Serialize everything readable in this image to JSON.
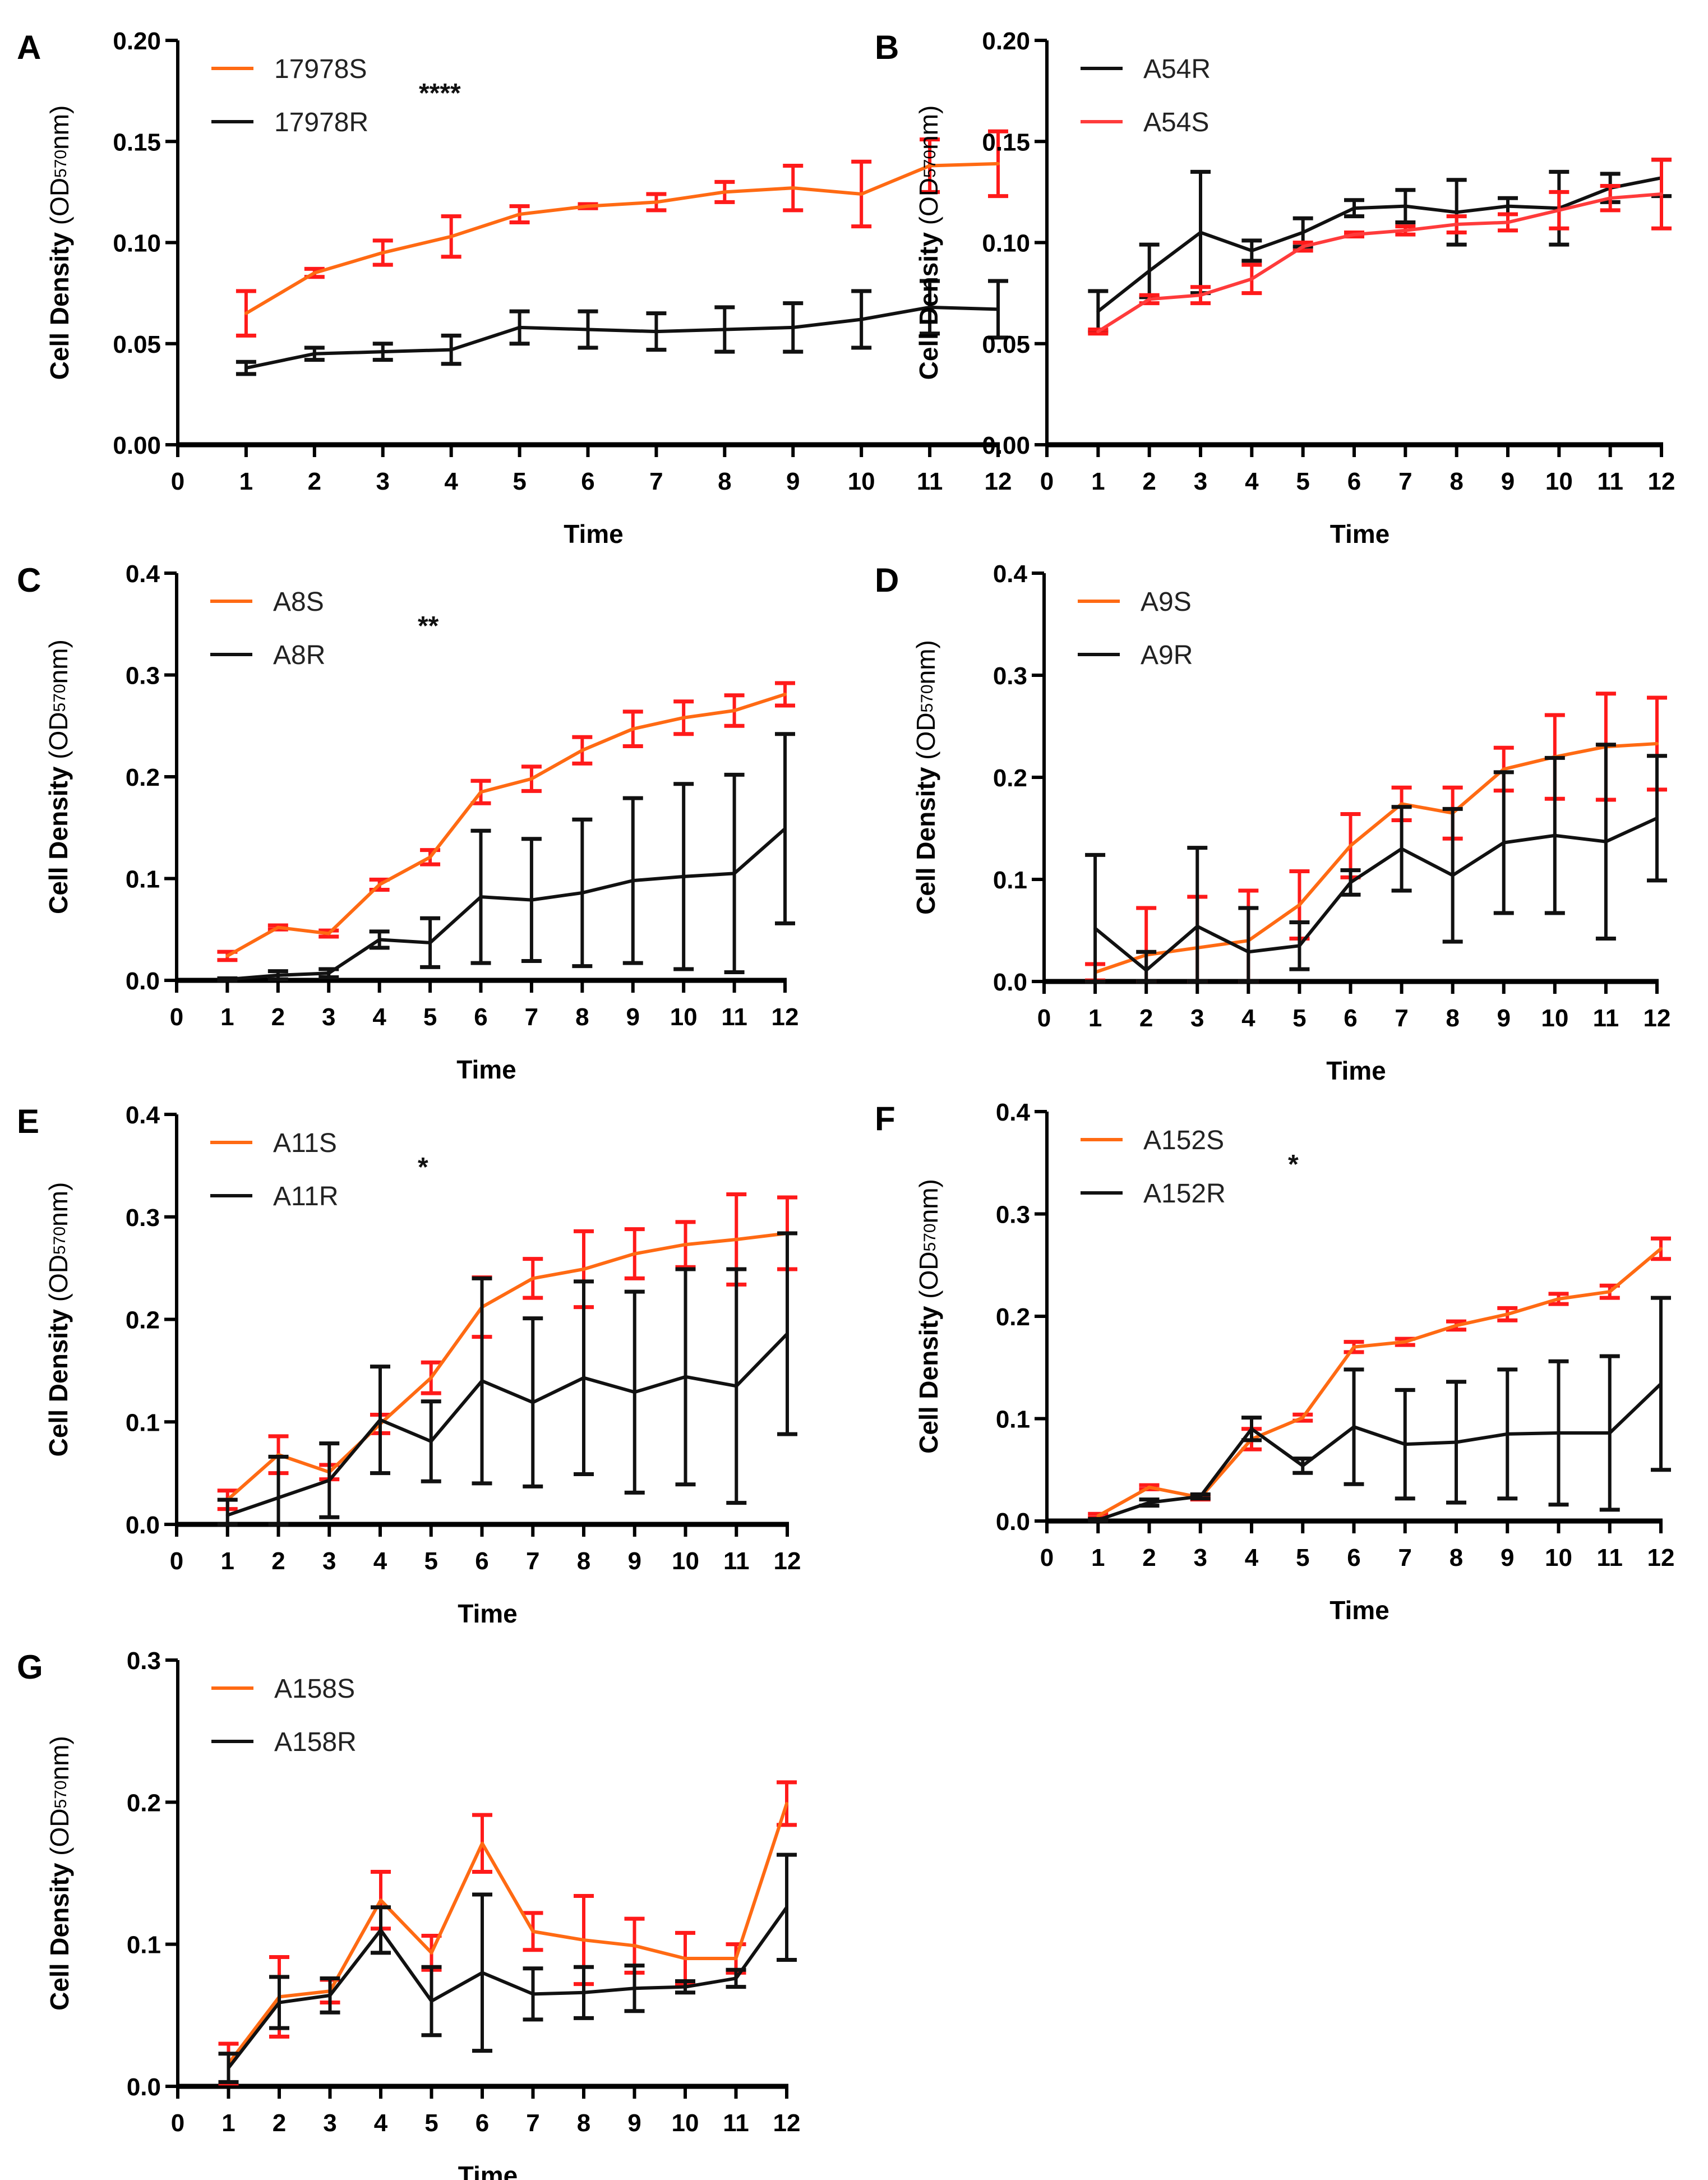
{
  "figure": {
    "y_axis_title_main": "Cell Density",
    "y_axis_unit_prefix": "(OD",
    "y_axis_unit_sub": "570",
    "y_axis_unit_suffix": "nm)",
    "x_axis_title": "Time"
  },
  "chart_data": [
    {
      "panel": "A",
      "type": "line",
      "title": "",
      "xlabel": "Time",
      "ylabel": "Cell Density (OD570nm)",
      "x": [
        1,
        2,
        3,
        4,
        5,
        6,
        7,
        8,
        9,
        10,
        11,
        12
      ],
      "xlim": [
        0,
        12
      ],
      "xticks": [
        "0",
        "1",
        "2",
        "3",
        "4",
        "5",
        "6",
        "7",
        "8",
        "9",
        "10",
        "11",
        "12"
      ],
      "ylim": [
        0,
        0.2
      ],
      "yticks": [
        "0.00",
        "0.05",
        "0.10",
        "0.15",
        "0.20"
      ],
      "ytick_values": [
        0,
        0.05,
        0.1,
        0.15,
        0.2
      ],
      "significance": "****",
      "legend_order": [
        0,
        1
      ],
      "series": [
        {
          "name": "17978S",
          "color": "#ff6a13",
          "error_color": "#ff1a1a",
          "values": [
            0.065,
            0.085,
            0.095,
            0.103,
            0.114,
            0.118,
            0.12,
            0.125,
            0.127,
            0.124,
            0.138,
            0.139
          ],
          "errors": [
            0.011,
            0.002,
            0.006,
            0.01,
            0.004,
            0.001,
            0.004,
            0.005,
            0.011,
            0.016,
            0.013,
            0.016
          ]
        },
        {
          "name": "17978R",
          "color": "#111111",
          "error_color": "#111111",
          "values": [
            0.038,
            0.045,
            0.046,
            0.047,
            0.058,
            0.057,
            0.056,
            0.057,
            0.058,
            0.062,
            0.068,
            0.067
          ],
          "errors": [
            0.003,
            0.003,
            0.004,
            0.007,
            0.008,
            0.009,
            0.009,
            0.011,
            0.012,
            0.014,
            0.013,
            0.014
          ]
        }
      ]
    },
    {
      "panel": "B",
      "type": "line",
      "title": "",
      "xlabel": "Time",
      "ylabel": "Cell Density (OD570nm)",
      "x": [
        1,
        2,
        3,
        4,
        5,
        6,
        7,
        8,
        9,
        10,
        11,
        12
      ],
      "xlim": [
        0,
        12
      ],
      "xticks": [
        "0",
        "1",
        "2",
        "3",
        "4",
        "5",
        "6",
        "7",
        "8",
        "9",
        "10",
        "11",
        "12"
      ],
      "ylim": [
        0,
        0.2
      ],
      "yticks": [
        "0.00",
        "0.05",
        "0.10",
        "0.15",
        "0.20"
      ],
      "ytick_values": [
        0,
        0.05,
        0.1,
        0.15,
        0.2
      ],
      "significance": "",
      "legend_order": [
        0,
        1
      ],
      "series": [
        {
          "name": "A54R",
          "color": "#111111",
          "error_color": "#111111",
          "values": [
            0.066,
            0.086,
            0.105,
            0.096,
            0.105,
            0.117,
            0.118,
            0.115,
            0.118,
            0.117,
            0.127,
            0.132
          ],
          "errors": [
            0.01,
            0.013,
            0.03,
            0.005,
            0.007,
            0.004,
            0.008,
            0.016,
            0.004,
            0.018,
            0.007,
            0.009
          ]
        },
        {
          "name": "A54S",
          "color": "#ff3b3b",
          "error_color": "#ff1a1a",
          "values": [
            0.056,
            0.072,
            0.074,
            0.082,
            0.098,
            0.104,
            0.106,
            0.109,
            0.11,
            0.116,
            0.122,
            0.124
          ],
          "errors": [
            0.001,
            0.002,
            0.004,
            0.007,
            0.002,
            0.001,
            0.002,
            0.004,
            0.004,
            0.009,
            0.006,
            0.017
          ]
        }
      ]
    },
    {
      "panel": "C",
      "type": "line",
      "title": "",
      "xlabel": "Time",
      "ylabel": "Cell Density (OD570nm)",
      "x": [
        1,
        2,
        3,
        4,
        5,
        6,
        7,
        8,
        9,
        10,
        11,
        12
      ],
      "xlim": [
        0,
        12
      ],
      "xticks": [
        "0",
        "1",
        "2",
        "3",
        "4",
        "5",
        "6",
        "7",
        "8",
        "9",
        "10",
        "11",
        "12"
      ],
      "ylim": [
        0,
        0.4
      ],
      "yticks": [
        "0.0",
        "0.1",
        "0.2",
        "0.3",
        "0.4"
      ],
      "ytick_values": [
        0,
        0.1,
        0.2,
        0.3,
        0.4
      ],
      "significance": "**",
      "legend_order": [
        0,
        1
      ],
      "series": [
        {
          "name": "A8S",
          "color": "#ff6a13",
          "error_color": "#ff1a1a",
          "values": [
            0.024,
            0.052,
            0.046,
            0.094,
            0.121,
            0.185,
            0.198,
            0.226,
            0.247,
            0.258,
            0.265,
            0.281
          ],
          "errors": [
            0.004,
            0.002,
            0.003,
            0.005,
            0.007,
            0.011,
            0.012,
            0.013,
            0.017,
            0.016,
            0.015,
            0.011
          ]
        },
        {
          "name": "A8R",
          "color": "#111111",
          "error_color": "#111111",
          "values": [
            0.001,
            0.005,
            0.007,
            0.04,
            0.037,
            0.082,
            0.079,
            0.086,
            0.098,
            0.102,
            0.105,
            0.149
          ],
          "errors": [
            0.001,
            0.004,
            0.004,
            0.008,
            0.024,
            0.065,
            0.06,
            0.072,
            0.081,
            0.091,
            0.097,
            0.093
          ]
        }
      ]
    },
    {
      "panel": "D",
      "type": "line",
      "title": "",
      "xlabel": "Time",
      "ylabel": "Cell Density (OD570nm)",
      "x": [
        1,
        2,
        3,
        4,
        5,
        6,
        7,
        8,
        9,
        10,
        11,
        12
      ],
      "xlim": [
        0,
        12
      ],
      "xticks": [
        "0",
        "1",
        "2",
        "3",
        "4",
        "5",
        "6",
        "7",
        "8",
        "9",
        "10",
        "11",
        "12"
      ],
      "ylim": [
        0,
        0.4
      ],
      "yticks": [
        "0.0",
        "0.1",
        "0.2",
        "0.3",
        "0.4"
      ],
      "ytick_values": [
        0,
        0.1,
        0.2,
        0.3,
        0.4
      ],
      "significance": "",
      "legend_order": [
        0,
        1
      ],
      "series": [
        {
          "name": "A9S",
          "color": "#ff6a13",
          "error_color": "#ff1a1a",
          "values": [
            0.009,
            0.026,
            0.033,
            0.04,
            0.075,
            0.133,
            0.174,
            0.165,
            0.208,
            0.22,
            0.23,
            0.233
          ],
          "errors": [
            0.008,
            0.046,
            0.05,
            0.049,
            0.033,
            0.031,
            0.016,
            0.025,
            0.021,
            0.041,
            0.052,
            0.045
          ]
        },
        {
          "name": "A9R",
          "color": "#111111",
          "error_color": "#111111",
          "values": [
            0.052,
            0.011,
            0.054,
            0.029,
            0.035,
            0.097,
            0.13,
            0.104,
            0.136,
            0.143,
            0.137,
            0.16
          ],
          "errors": [
            0.072,
            0.018,
            0.077,
            0.043,
            0.023,
            0.012,
            0.041,
            0.065,
            0.069,
            0.076,
            0.095,
            0.061
          ]
        }
      ]
    },
    {
      "panel": "E",
      "type": "line",
      "title": "",
      "xlabel": "Time",
      "ylabel": "Cell Density (OD570nm)",
      "x": [
        1,
        2,
        3,
        4,
        5,
        6,
        7,
        8,
        9,
        10,
        11,
        12
      ],
      "xlim": [
        0,
        12
      ],
      "xticks": [
        "0",
        "1",
        "2",
        "3",
        "4",
        "5",
        "6",
        "7",
        "8",
        "9",
        "10",
        "11",
        "12"
      ],
      "ylim": [
        0,
        0.4
      ],
      "yticks": [
        "0.0",
        "0.1",
        "0.2",
        "0.3",
        "0.4"
      ],
      "ytick_values": [
        0,
        0.1,
        0.2,
        0.3,
        0.4
      ],
      "significance": "*",
      "legend_order": [
        0,
        1
      ],
      "series": [
        {
          "name": "A11S",
          "color": "#ff6a13",
          "error_color": "#ff1a1a",
          "values": [
            0.024,
            0.068,
            0.051,
            0.098,
            0.143,
            0.212,
            0.24,
            0.249,
            0.264,
            0.273,
            0.278,
            0.284
          ],
          "errors": [
            0.009,
            0.018,
            0.007,
            0.009,
            0.015,
            0.029,
            0.019,
            0.037,
            0.024,
            0.022,
            0.044,
            0.035
          ]
        },
        {
          "name": "A11R",
          "color": "#111111",
          "error_color": "#111111",
          "values": [
            0.009,
            0.026,
            0.043,
            0.102,
            0.081,
            0.14,
            0.119,
            0.143,
            0.129,
            0.144,
            0.135,
            0.186
          ],
          "errors": [
            0.015,
            0.04,
            0.036,
            0.052,
            0.039,
            0.1,
            0.082,
            0.094,
            0.098,
            0.105,
            0.114,
            0.098
          ]
        }
      ]
    },
    {
      "panel": "F",
      "type": "line",
      "title": "",
      "xlabel": "Time",
      "ylabel": "Cell Density (OD570nm)",
      "x": [
        1,
        2,
        3,
        4,
        5,
        6,
        7,
        8,
        9,
        10,
        11,
        12
      ],
      "xlim": [
        0,
        12
      ],
      "xticks": [
        "0",
        "1",
        "2",
        "3",
        "4",
        "5",
        "6",
        "7",
        "8",
        "9",
        "10",
        "11",
        "12"
      ],
      "ylim": [
        0,
        0.4
      ],
      "yticks": [
        "0.0",
        "0.1",
        "0.2",
        "0.3",
        "0.4"
      ],
      "ytick_values": [
        0,
        0.1,
        0.2,
        0.3,
        0.4
      ],
      "significance": "*",
      "legend_order": [
        0,
        1
      ],
      "series": [
        {
          "name": "A152S",
          "color": "#ff6a13",
          "error_color": "#ff1a1a",
          "values": [
            0.005,
            0.033,
            0.023,
            0.08,
            0.101,
            0.17,
            0.175,
            0.191,
            0.202,
            0.217,
            0.224,
            0.266
          ],
          "errors": [
            0.002,
            0.002,
            0.002,
            0.01,
            0.003,
            0.005,
            0.003,
            0.004,
            0.006,
            0.005,
            0.006,
            0.01
          ]
        },
        {
          "name": "A152R",
          "color": "#111111",
          "error_color": "#111111",
          "values": [
            0.001,
            0.018,
            0.024,
            0.09,
            0.054,
            0.092,
            0.075,
            0.077,
            0.085,
            0.086,
            0.086,
            0.134
          ],
          "errors": [
            0.001,
            0.003,
            0.002,
            0.011,
            0.007,
            0.056,
            0.053,
            0.059,
            0.063,
            0.07,
            0.075,
            0.084
          ]
        }
      ]
    },
    {
      "panel": "G",
      "type": "line",
      "title": "",
      "xlabel": "Time",
      "ylabel": "Cell Density (OD570nm)",
      "x": [
        1,
        2,
        3,
        4,
        5,
        6,
        7,
        8,
        9,
        10,
        11,
        12
      ],
      "xlim": [
        0,
        12
      ],
      "xticks": [
        "0",
        "1",
        "2",
        "3",
        "4",
        "5",
        "6",
        "7",
        "8",
        "9",
        "10",
        "11",
        "12"
      ],
      "ylim": [
        0,
        0.3
      ],
      "yticks": [
        "0.0",
        "0.1",
        "0.2",
        "0.3"
      ],
      "ytick_values": [
        0,
        0.1,
        0.2,
        0.3
      ],
      "significance": "",
      "legend_order": [
        0,
        1
      ],
      "series": [
        {
          "name": "A158S",
          "color": "#ff6a13",
          "error_color": "#ff1a1a",
          "values": [
            0.016,
            0.063,
            0.067,
            0.131,
            0.094,
            0.171,
            0.109,
            0.103,
            0.099,
            0.09,
            0.09,
            0.199
          ],
          "errors": [
            0.014,
            0.028,
            0.008,
            0.02,
            0.012,
            0.02,
            0.013,
            0.031,
            0.019,
            0.018,
            0.01,
            0.015
          ]
        },
        {
          "name": "A158R",
          "color": "#111111",
          "error_color": "#111111",
          "values": [
            0.013,
            0.059,
            0.064,
            0.11,
            0.06,
            0.08,
            0.065,
            0.066,
            0.069,
            0.07,
            0.076,
            0.126
          ],
          "errors": [
            0.01,
            0.018,
            0.012,
            0.016,
            0.024,
            0.055,
            0.018,
            0.018,
            0.016,
            0.004,
            0.006,
            0.037
          ]
        }
      ]
    }
  ]
}
